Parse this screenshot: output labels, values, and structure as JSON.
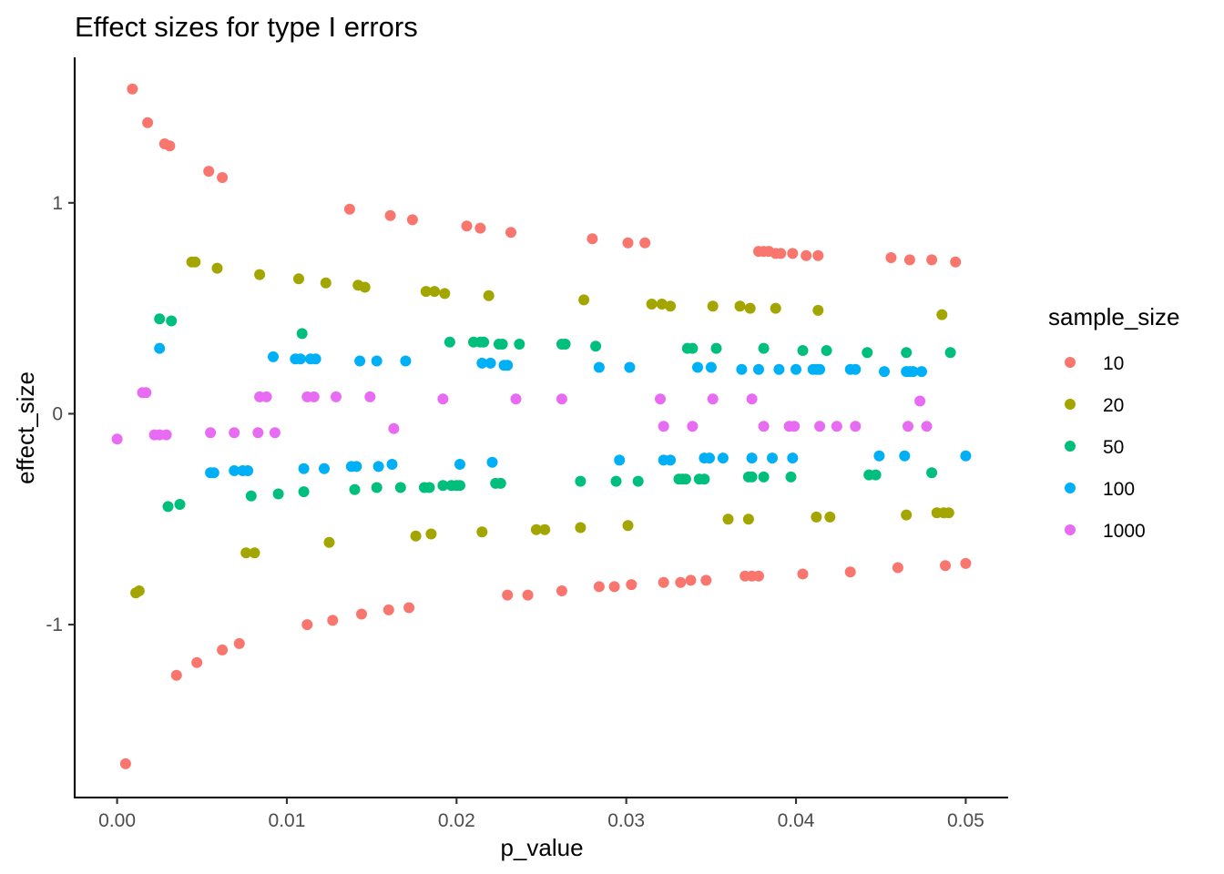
{
  "chart_data": {
    "type": "scatter",
    "title": "Effect sizes for type I errors",
    "xlabel": "p_value",
    "ylabel": "effect_size",
    "xlim": [
      -0.0025,
      0.0525
    ],
    "ylim": [
      -1.82,
      1.69
    ],
    "x_ticks": [
      0,
      0.01,
      0.02,
      0.03,
      0.04,
      0.05
    ],
    "x_tick_labels": [
      "0.00",
      "0.01",
      "0.02",
      "0.03",
      "0.04",
      "0.05"
    ],
    "y_ticks": [
      -1,
      0,
      1
    ],
    "y_tick_labels": [
      "-1",
      "0",
      "1"
    ],
    "grid": false,
    "legend": {
      "title": "sample_size",
      "position": "right"
    },
    "series": [
      {
        "name": "10",
        "color": "#F8766D",
        "points": [
          [
            0.0009,
            1.54
          ],
          [
            0.0018,
            1.38
          ],
          [
            0.0028,
            1.28
          ],
          [
            0.0031,
            1.27
          ],
          [
            0.0054,
            1.15
          ],
          [
            0.0062,
            1.12
          ],
          [
            0.0137,
            0.97
          ],
          [
            0.0161,
            0.94
          ],
          [
            0.0174,
            0.92
          ],
          [
            0.0206,
            0.89
          ],
          [
            0.0214,
            0.88
          ],
          [
            0.0232,
            0.86
          ],
          [
            0.028,
            0.83
          ],
          [
            0.0301,
            0.81
          ],
          [
            0.0311,
            0.81
          ],
          [
            0.0378,
            0.77
          ],
          [
            0.0381,
            0.77
          ],
          [
            0.0384,
            0.77
          ],
          [
            0.0388,
            0.76
          ],
          [
            0.0391,
            0.76
          ],
          [
            0.0398,
            0.76
          ],
          [
            0.0406,
            0.75
          ],
          [
            0.0413,
            0.75
          ],
          [
            0.0456,
            0.74
          ],
          [
            0.0467,
            0.73
          ],
          [
            0.048,
            0.73
          ],
          [
            0.0494,
            0.72
          ],
          [
            0.0005,
            -1.66
          ],
          [
            0.0035,
            -1.24
          ],
          [
            0.0047,
            -1.18
          ],
          [
            0.0062,
            -1.12
          ],
          [
            0.0072,
            -1.09
          ],
          [
            0.0112,
            -1.0
          ],
          [
            0.0127,
            -0.98
          ],
          [
            0.0144,
            -0.95
          ],
          [
            0.016,
            -0.93
          ],
          [
            0.0172,
            -0.92
          ],
          [
            0.023,
            -0.86
          ],
          [
            0.0242,
            -0.86
          ],
          [
            0.0262,
            -0.84
          ],
          [
            0.0284,
            -0.82
          ],
          [
            0.0293,
            -0.82
          ],
          [
            0.0303,
            -0.81
          ],
          [
            0.0322,
            -0.8
          ],
          [
            0.0332,
            -0.8
          ],
          [
            0.0338,
            -0.79
          ],
          [
            0.0347,
            -0.79
          ],
          [
            0.037,
            -0.77
          ],
          [
            0.0374,
            -0.77
          ],
          [
            0.0378,
            -0.77
          ],
          [
            0.0404,
            -0.76
          ],
          [
            0.0432,
            -0.75
          ],
          [
            0.046,
            -0.73
          ],
          [
            0.0488,
            -0.72
          ],
          [
            0.05,
            -0.71
          ]
        ]
      },
      {
        "name": "20",
        "color": "#A3A500",
        "points": [
          [
            0.0044,
            0.72
          ],
          [
            0.0046,
            0.72
          ],
          [
            0.0059,
            0.69
          ],
          [
            0.0084,
            0.66
          ],
          [
            0.0107,
            0.64
          ],
          [
            0.0123,
            0.62
          ],
          [
            0.0142,
            0.61
          ],
          [
            0.0146,
            0.6
          ],
          [
            0.0182,
            0.58
          ],
          [
            0.0187,
            0.58
          ],
          [
            0.0193,
            0.57
          ],
          [
            0.0219,
            0.56
          ],
          [
            0.0275,
            0.54
          ],
          [
            0.0315,
            0.52
          ],
          [
            0.0321,
            0.52
          ],
          [
            0.0326,
            0.51
          ],
          [
            0.0351,
            0.51
          ],
          [
            0.0367,
            0.51
          ],
          [
            0.0373,
            0.5
          ],
          [
            0.0388,
            0.5
          ],
          [
            0.0413,
            0.49
          ],
          [
            0.0486,
            0.47
          ],
          [
            0.0011,
            -0.85
          ],
          [
            0.0013,
            -0.84
          ],
          [
            0.0076,
            -0.66
          ],
          [
            0.0081,
            -0.66
          ],
          [
            0.0125,
            -0.61
          ],
          [
            0.0176,
            -0.58
          ],
          [
            0.0185,
            -0.57
          ],
          [
            0.0215,
            -0.56
          ],
          [
            0.0247,
            -0.55
          ],
          [
            0.0252,
            -0.55
          ],
          [
            0.0273,
            -0.54
          ],
          [
            0.0301,
            -0.53
          ],
          [
            0.036,
            -0.5
          ],
          [
            0.0372,
            -0.5
          ],
          [
            0.0412,
            -0.49
          ],
          [
            0.042,
            -0.49
          ],
          [
            0.0465,
            -0.48
          ],
          [
            0.0483,
            -0.47
          ],
          [
            0.0487,
            -0.47
          ],
          [
            0.049,
            -0.47
          ]
        ]
      },
      {
        "name": "50",
        "color": "#00BF7D",
        "points": [
          [
            0.0025,
            0.45
          ],
          [
            0.0032,
            0.44
          ],
          [
            0.0109,
            0.38
          ],
          [
            0.0196,
            0.34
          ],
          [
            0.021,
            0.34
          ],
          [
            0.0214,
            0.34
          ],
          [
            0.0216,
            0.34
          ],
          [
            0.0225,
            0.33
          ],
          [
            0.0227,
            0.33
          ],
          [
            0.0237,
            0.33
          ],
          [
            0.0262,
            0.33
          ],
          [
            0.0264,
            0.33
          ],
          [
            0.0282,
            0.32
          ],
          [
            0.0336,
            0.31
          ],
          [
            0.0339,
            0.31
          ],
          [
            0.0353,
            0.31
          ],
          [
            0.0381,
            0.31
          ],
          [
            0.0404,
            0.3
          ],
          [
            0.0418,
            0.3
          ],
          [
            0.0442,
            0.29
          ],
          [
            0.0465,
            0.29
          ],
          [
            0.0491,
            0.29
          ],
          [
            0.003,
            -0.44
          ],
          [
            0.0037,
            -0.43
          ],
          [
            0.0079,
            -0.39
          ],
          [
            0.0095,
            -0.38
          ],
          [
            0.011,
            -0.37
          ],
          [
            0.014,
            -0.36
          ],
          [
            0.0153,
            -0.35
          ],
          [
            0.0167,
            -0.35
          ],
          [
            0.0181,
            -0.35
          ],
          [
            0.0184,
            -0.35
          ],
          [
            0.0192,
            -0.34
          ],
          [
            0.0197,
            -0.34
          ],
          [
            0.02,
            -0.34
          ],
          [
            0.0202,
            -0.34
          ],
          [
            0.0223,
            -0.33
          ],
          [
            0.0226,
            -0.33
          ],
          [
            0.0273,
            -0.32
          ],
          [
            0.0294,
            -0.32
          ],
          [
            0.0307,
            -0.32
          ],
          [
            0.0331,
            -0.31
          ],
          [
            0.0333,
            -0.31
          ],
          [
            0.0335,
            -0.31
          ],
          [
            0.0343,
            -0.31
          ],
          [
            0.0346,
            -0.31
          ],
          [
            0.0372,
            -0.3
          ],
          [
            0.0374,
            -0.3
          ],
          [
            0.0381,
            -0.3
          ],
          [
            0.0397,
            -0.3
          ],
          [
            0.0443,
            -0.29
          ],
          [
            0.0447,
            -0.29
          ],
          [
            0.048,
            -0.28
          ]
        ]
      },
      {
        "name": "100",
        "color": "#00B0F6",
        "points": [
          [
            0.0025,
            0.31
          ],
          [
            0.0092,
            0.27
          ],
          [
            0.0105,
            0.26
          ],
          [
            0.0108,
            0.26
          ],
          [
            0.0114,
            0.26
          ],
          [
            0.0117,
            0.26
          ],
          [
            0.0143,
            0.25
          ],
          [
            0.0153,
            0.25
          ],
          [
            0.017,
            0.25
          ],
          [
            0.0215,
            0.24
          ],
          [
            0.022,
            0.24
          ],
          [
            0.0228,
            0.23
          ],
          [
            0.023,
            0.23
          ],
          [
            0.0284,
            0.22
          ],
          [
            0.0302,
            0.22
          ],
          [
            0.0342,
            0.22
          ],
          [
            0.035,
            0.22
          ],
          [
            0.0368,
            0.21
          ],
          [
            0.0378,
            0.21
          ],
          [
            0.039,
            0.21
          ],
          [
            0.04,
            0.21
          ],
          [
            0.041,
            0.21
          ],
          [
            0.0412,
            0.21
          ],
          [
            0.0414,
            0.21
          ],
          [
            0.0432,
            0.21
          ],
          [
            0.0435,
            0.21
          ],
          [
            0.0452,
            0.2
          ],
          [
            0.0465,
            0.2
          ],
          [
            0.0467,
            0.2
          ],
          [
            0.0469,
            0.2
          ],
          [
            0.0474,
            0.2
          ],
          [
            0.0055,
            -0.28
          ],
          [
            0.0057,
            -0.28
          ],
          [
            0.0069,
            -0.27
          ],
          [
            0.0074,
            -0.27
          ],
          [
            0.0077,
            -0.27
          ],
          [
            0.011,
            -0.26
          ],
          [
            0.0122,
            -0.26
          ],
          [
            0.0138,
            -0.25
          ],
          [
            0.0141,
            -0.25
          ],
          [
            0.0154,
            -0.25
          ],
          [
            0.0162,
            -0.24
          ],
          [
            0.0202,
            -0.24
          ],
          [
            0.0221,
            -0.23
          ],
          [
            0.0296,
            -0.22
          ],
          [
            0.0322,
            -0.22
          ],
          [
            0.0326,
            -0.22
          ],
          [
            0.0346,
            -0.21
          ],
          [
            0.0349,
            -0.21
          ],
          [
            0.0357,
            -0.21
          ],
          [
            0.0374,
            -0.21
          ],
          [
            0.0386,
            -0.21
          ],
          [
            0.0398,
            -0.21
          ],
          [
            0.0449,
            -0.2
          ],
          [
            0.0464,
            -0.2
          ],
          [
            0.05,
            -0.2
          ]
        ]
      },
      {
        "name": "1000",
        "color": "#E76BF3",
        "points": [
          [
            0.0015,
            0.1
          ],
          [
            0.0017,
            0.1
          ],
          [
            0.0084,
            0.08
          ],
          [
            0.0088,
            0.08
          ],
          [
            0.0112,
            0.08
          ],
          [
            0.0116,
            0.08
          ],
          [
            0.0129,
            0.08
          ],
          [
            0.0149,
            0.08
          ],
          [
            0.0192,
            0.07
          ],
          [
            0.0235,
            0.07
          ],
          [
            0.0262,
            0.07
          ],
          [
            0.032,
            0.07
          ],
          [
            0.0351,
            0.07
          ],
          [
            0.0374,
            0.07
          ],
          [
            0.0473,
            0.06
          ],
          [
            0.0,
            -0.12
          ],
          [
            0.0022,
            -0.1
          ],
          [
            0.0025,
            -0.1
          ],
          [
            0.0029,
            -0.1
          ],
          [
            0.0055,
            -0.09
          ],
          [
            0.0069,
            -0.09
          ],
          [
            0.0083,
            -0.09
          ],
          [
            0.0093,
            -0.09
          ],
          [
            0.0163,
            -0.07
          ],
          [
            0.0322,
            -0.06
          ],
          [
            0.0339,
            -0.06
          ],
          [
            0.0381,
            -0.06
          ],
          [
            0.0396,
            -0.06
          ],
          [
            0.0399,
            -0.06
          ],
          [
            0.0414,
            -0.06
          ],
          [
            0.0424,
            -0.06
          ],
          [
            0.0435,
            -0.06
          ],
          [
            0.0466,
            -0.06
          ],
          [
            0.0477,
            -0.06
          ]
        ]
      }
    ]
  }
}
